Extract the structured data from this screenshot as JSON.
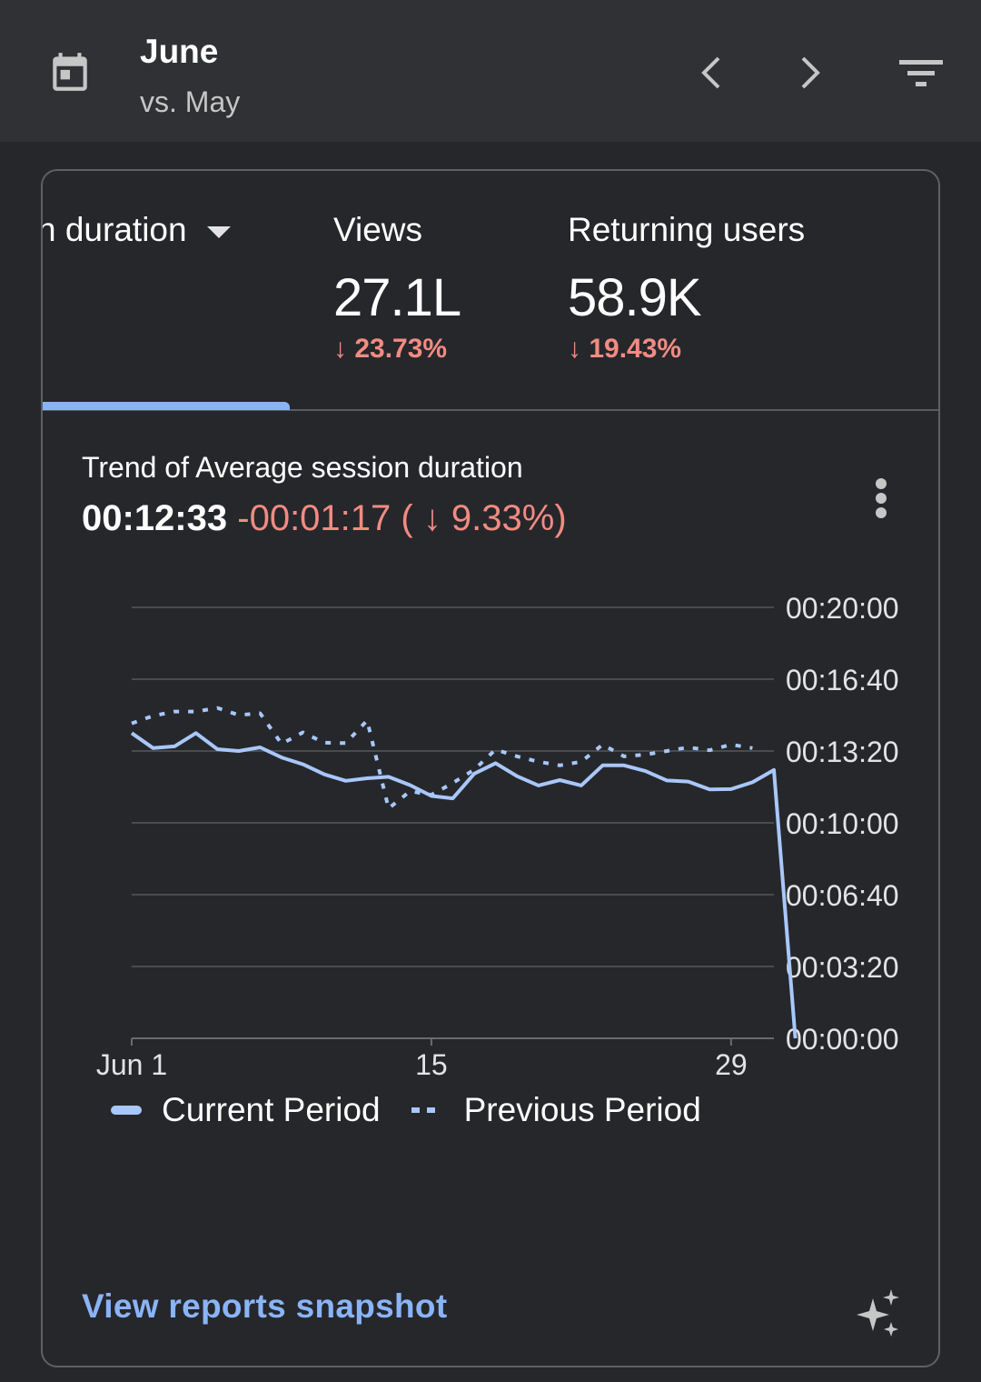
{
  "header": {
    "title": "June",
    "subtitle": "vs. May",
    "icons": {
      "calendar": "calendar-icon",
      "prev": "chevron-left-icon",
      "next": "chevron-right-icon",
      "filter": "filter-icon"
    }
  },
  "metrics": {
    "selected_label": "n duration",
    "items": [
      {
        "label": "Views",
        "value": "27.1L",
        "change": "↓ 23.73%"
      },
      {
        "label": "Returning users",
        "value": "58.9K",
        "change": "↓ 19.43%"
      }
    ]
  },
  "trend": {
    "title": "Trend of Average session duration",
    "value": "00:12:33",
    "delta": "-00:01:17 ( ↓ 9.33%)"
  },
  "colors": {
    "accent": "#8ab4f8",
    "negative": "#f28b82",
    "series": "#a8c7fa"
  },
  "chart_data": {
    "type": "line",
    "x_ticks": [
      "Jun 1",
      "15",
      "29"
    ],
    "y_ticks": [
      "00:20:00",
      "00:16:40",
      "00:13:20",
      "00:10:00",
      "00:06:40",
      "00:03:20",
      "00:00:00"
    ],
    "ylim_seconds": [
      0,
      1200
    ],
    "grid": true,
    "legend_position": "bottom",
    "series": [
      {
        "name": "Current Period",
        "style": "solid",
        "values_seconds": [
          850,
          808,
          813,
          850,
          805,
          800,
          810,
          782,
          763,
          735,
          717,
          724,
          728,
          705,
          675,
          668,
          737,
          766,
          730,
          704,
          719,
          704,
          760,
          760,
          744,
          718,
          715,
          693,
          694,
          713,
          747,
          0
        ]
      },
      {
        "name": "Previous Period",
        "style": "dotted",
        "values_seconds": [
          877,
          898,
          910,
          910,
          920,
          900,
          905,
          820,
          852,
          823,
          822,
          885,
          640,
          688,
          678,
          711,
          748,
          804,
          785,
          770,
          760,
          770,
          818,
          785,
          790,
          800,
          810,
          802,
          818,
          808
        ]
      }
    ]
  },
  "legend": {
    "current": "Current Period",
    "previous": "Previous Period"
  },
  "footer": {
    "link": "View reports snapshot",
    "sparkle_icon": "sparkle-icon"
  }
}
